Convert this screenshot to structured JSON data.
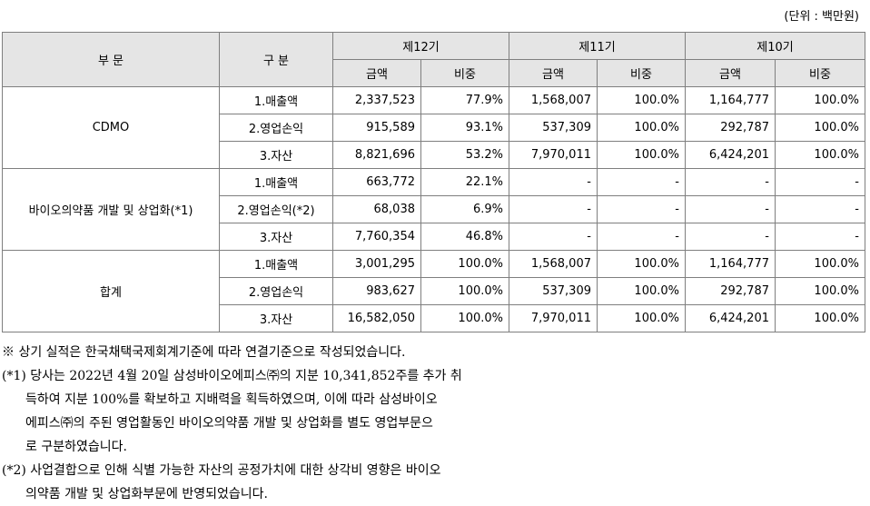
{
  "unit": "(단위 : 백만원)",
  "headers": {
    "segment": "부 문",
    "category": "구 분",
    "periods": [
      "제12기",
      "제11기",
      "제10기"
    ],
    "amount": "금액",
    "ratio": "비중"
  },
  "groups": [
    {
      "name": "CDMO",
      "rows": [
        {
          "label": "1.매출액",
          "v": [
            "2,337,523",
            "77.9%",
            "1,568,007",
            "100.0%",
            "1,164,777",
            "100.0%"
          ]
        },
        {
          "label": "2.영업손익",
          "v": [
            "915,589",
            "93.1%",
            "537,309",
            "100.0%",
            "292,787",
            "100.0%"
          ]
        },
        {
          "label": "3.자산",
          "v": [
            "8,821,696",
            "53.2%",
            "7,970,011",
            "100.0%",
            "6,424,201",
            "100.0%"
          ]
        }
      ]
    },
    {
      "name": "바이오의약품 개발 및 상업화(*1)",
      "rows": [
        {
          "label": "1.매출액",
          "v": [
            "663,772",
            "22.1%",
            "-",
            "-",
            "-",
            "-"
          ]
        },
        {
          "label": "2.영업손익(*2)",
          "v": [
            "68,038",
            "6.9%",
            "-",
            "-",
            "-",
            "-"
          ]
        },
        {
          "label": "3.자산",
          "v": [
            "7,760,354",
            "46.8%",
            "-",
            "-",
            "-",
            "-"
          ]
        }
      ]
    },
    {
      "name": "합계",
      "rows": [
        {
          "label": "1.매출액",
          "v": [
            "3,001,295",
            "100.0%",
            "1,568,007",
            "100.0%",
            "1,164,777",
            "100.0%"
          ]
        },
        {
          "label": "2.영업손익",
          "v": [
            "983,627",
            "100.0%",
            "537,309",
            "100.0%",
            "292,787",
            "100.0%"
          ]
        },
        {
          "label": "3.자산",
          "v": [
            "16,582,050",
            "100.0%",
            "7,970,011",
            "100.0%",
            "6,424,201",
            "100.0%"
          ]
        }
      ]
    }
  ],
  "notes": [
    {
      "text": "※ 상기 실적은 한국채택국제회계기준에 따라 연결기준으로 작성되었습니다.",
      "indent": false
    },
    {
      "text": "(*1) 당사는 2022년 4월 20일 삼성바이오에피스㈜의 지분 10,341,852주를 추가 취",
      "indent": false
    },
    {
      "text": "득하여 지분 100%를 확보하고 지배력을 획득하였으며, 이에 따라 삼성바이오",
      "indent": true
    },
    {
      "text": "에피스㈜의 주된 영업활동인 바이오의약품 개발 및 상업화를 별도 영업부문으",
      "indent": true
    },
    {
      "text": "로 구분하였습니다.",
      "indent": true
    },
    {
      "text": "(*2) 사업결합으로 인해 식별 가능한 자산의 공정가치에 대한 상각비 영향은 바이오",
      "indent": false
    },
    {
      "text": "의약품 개발 및 상업화부문에 반영되었습니다.",
      "indent": true
    }
  ]
}
